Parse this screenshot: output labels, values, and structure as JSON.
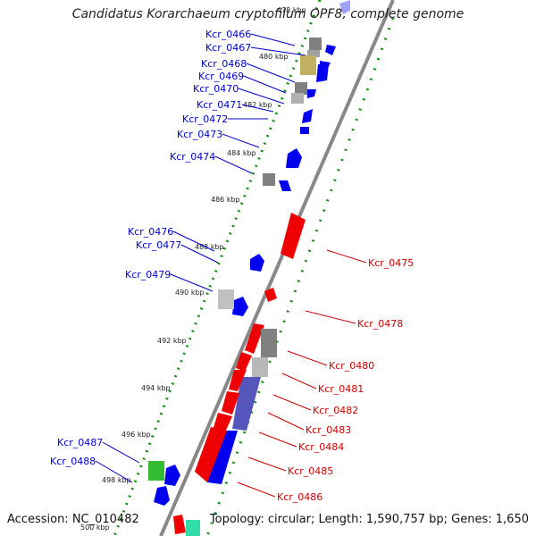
{
  "title": "Candidatus Korarchaeum cryptofilum OPF8, complete genome",
  "accession": "Accession: NC_010482",
  "topology": "Topology: circular; Length: 1,590,757 bp; Genes: 1,650",
  "colors": {
    "backbone": "#888888",
    "tick": "#1a8a1a",
    "forward_gene": "#0000ee",
    "reverse_gene": "#ee0000",
    "label_forward": "#0000cc",
    "label_reverse": "#cc0000"
  },
  "scale_labels": [
    "478 kbp",
    "480 kbp",
    "482 kbp",
    "484 kbp",
    "486 kbp",
    "488 kbp",
    "490 kbp",
    "492 kbp",
    "494 kbp",
    "496 kbp",
    "498 kbp",
    "500 kbp"
  ],
  "left_labels": [
    "Kcr_0466",
    "Kcr_0467",
    "Kcr_0468",
    "Kcr_0469",
    "Kcr_0470",
    "Kcr_0471",
    "Kcr_0472",
    "Kcr_0473",
    "Kcr_0474",
    "Kcr_0476",
    "Kcr_0477",
    "Kcr_0479",
    "Kcr_0487",
    "Kcr_0488"
  ],
  "right_labels": [
    "Kcr_0475",
    "Kcr_0478",
    "Kcr_0480",
    "Kcr_0481",
    "Kcr_0482",
    "Kcr_0483",
    "Kcr_0484",
    "Kcr_0485",
    "Kcr_0486"
  ]
}
